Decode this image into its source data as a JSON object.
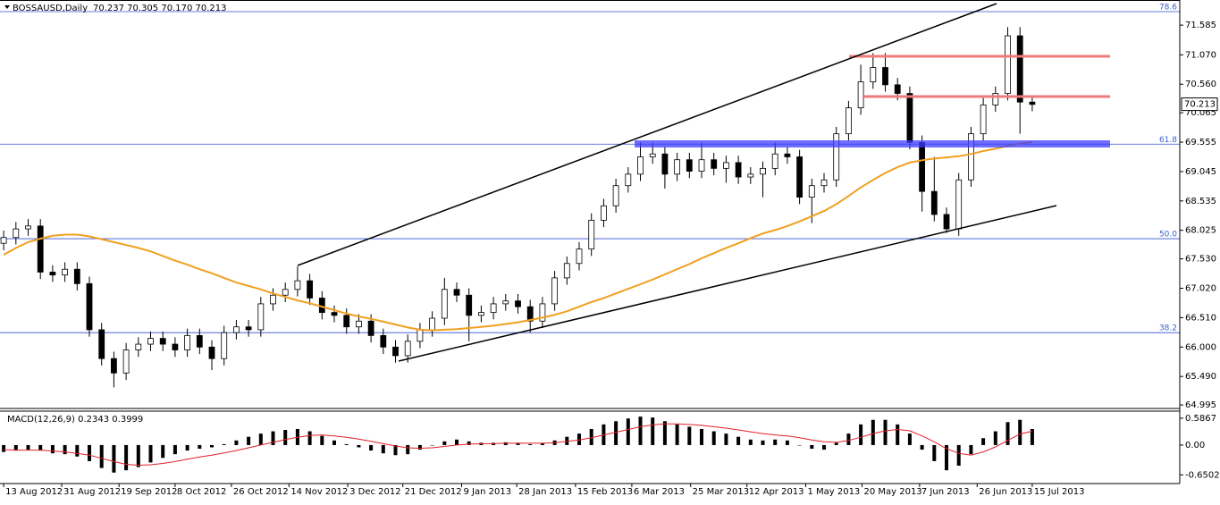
{
  "chart_data": {
    "type": "candlestick",
    "symbol": "BOSSAUSD,Daily",
    "ohlc_text": "70.237 70.305 70.170 70.213",
    "open": [
      67.8,
      67.9,
      68.05,
      68.1,
      67.3,
      67.25,
      67.35,
      67.1,
      66.3,
      65.8,
      65.55,
      65.95,
      66.05,
      66.15,
      66.05,
      65.95,
      66.2,
      66.0,
      65.8,
      66.25,
      66.35,
      66.3,
      66.75,
      66.9,
      67.0,
      67.15,
      66.85,
      66.6,
      66.55,
      66.35,
      66.45,
      66.2,
      66.0,
      65.85,
      66.1,
      66.3,
      66.5,
      67.0,
      66.9,
      66.55,
      66.6,
      66.75,
      66.8,
      66.7,
      66.45,
      66.75,
      67.2,
      67.45,
      67.7,
      68.2,
      68.45,
      68.8,
      69.0,
      69.3,
      69.35,
      69.0,
      69.25,
      69.05,
      69.25,
      69.1,
      69.2,
      68.95,
      69.0,
      69.1,
      69.35,
      69.3,
      68.6,
      68.8,
      68.9,
      69.7,
      70.15,
      70.6,
      70.85,
      70.55,
      70.4,
      69.55,
      68.7,
      68.3,
      68.05,
      68.9,
      69.7,
      70.2,
      70.4,
      71.4,
      70.25
    ],
    "high": [
      68.02,
      68.17,
      68.22,
      68.22,
      67.42,
      67.47,
      67.47,
      67.22,
      66.42,
      65.92,
      66.07,
      66.17,
      66.27,
      66.27,
      66.17,
      66.32,
      66.32,
      66.12,
      66.37,
      66.47,
      66.47,
      66.87,
      67.02,
      67.12,
      67.4,
      67.27,
      66.97,
      66.72,
      66.67,
      66.57,
      66.57,
      66.32,
      66.12,
      66.22,
      66.42,
      66.62,
      67.2,
      67.12,
      67.02,
      66.72,
      66.87,
      66.92,
      66.92,
      66.82,
      66.87,
      67.32,
      67.57,
      67.82,
      68.32,
      68.57,
      68.92,
      69.12,
      69.55,
      69.55,
      69.47,
      69.37,
      69.37,
      69.55,
      69.37,
      69.32,
      69.32,
      69.12,
      69.22,
      69.55,
      69.47,
      69.42,
      68.92,
      69.02,
      69.82,
      70.27,
      70.9,
      71.1,
      71.1,
      70.67,
      70.52,
      69.67,
      69.3,
      68.42,
      69.02,
      69.82,
      70.32,
      70.52,
      71.55,
      71.55,
      70.37
    ],
    "low": [
      67.68,
      67.78,
      67.93,
      67.18,
      67.13,
      67.13,
      66.98,
      66.18,
      65.68,
      65.3,
      65.43,
      65.83,
      65.93,
      65.93,
      65.83,
      65.83,
      65.88,
      65.6,
      65.68,
      66.13,
      66.18,
      66.18,
      66.63,
      66.78,
      66.88,
      66.73,
      66.48,
      66.43,
      66.23,
      66.23,
      66.08,
      65.88,
      65.73,
      65.73,
      65.98,
      66.18,
      66.38,
      66.78,
      66.1,
      66.43,
      66.48,
      66.63,
      66.58,
      66.25,
      66.33,
      66.63,
      67.08,
      67.33,
      67.58,
      68.08,
      68.33,
      68.68,
      68.88,
      69.18,
      68.75,
      68.88,
      68.93,
      68.93,
      68.98,
      68.85,
      68.83,
      68.83,
      68.6,
      68.98,
      69.18,
      68.48,
      68.15,
      68.68,
      68.78,
      69.58,
      70.03,
      70.48,
      70.43,
      70.28,
      69.43,
      68.35,
      68.18,
      67.98,
      67.93,
      68.78,
      69.58,
      70.08,
      70.28,
      69.7,
      70.09
    ],
    "close": [
      67.9,
      68.05,
      68.1,
      67.3,
      67.25,
      67.35,
      67.1,
      66.3,
      65.8,
      65.55,
      65.95,
      66.05,
      66.15,
      66.05,
      65.95,
      66.2,
      66.0,
      65.8,
      66.25,
      66.35,
      66.3,
      66.75,
      66.9,
      67.0,
      67.15,
      66.85,
      66.6,
      66.55,
      66.35,
      66.45,
      66.2,
      66.0,
      65.85,
      66.1,
      66.3,
      66.5,
      67.0,
      66.9,
      66.55,
      66.6,
      66.75,
      66.8,
      66.7,
      66.45,
      66.75,
      67.2,
      67.45,
      67.7,
      68.2,
      68.45,
      68.8,
      69.0,
      69.3,
      69.35,
      69.0,
      69.25,
      69.05,
      69.25,
      69.1,
      69.2,
      68.95,
      69.0,
      69.1,
      69.35,
      69.3,
      68.6,
      68.8,
      68.9,
      69.7,
      70.15,
      70.6,
      70.85,
      70.55,
      70.4,
      69.55,
      68.7,
      68.3,
      68.05,
      68.9,
      69.7,
      70.2,
      70.4,
      71.4,
      70.25,
      70.21
    ],
    "moving_average": {
      "color": "#f0a020",
      "values": [
        67.6,
        67.72,
        67.82,
        67.88,
        67.93,
        67.95,
        67.95,
        67.92,
        67.87,
        67.82,
        67.77,
        67.72,
        67.66,
        67.58,
        67.5,
        67.43,
        67.35,
        67.28,
        67.2,
        67.12,
        67.06,
        67.0,
        66.93,
        66.87,
        66.81,
        66.76,
        66.7,
        66.64,
        66.58,
        66.53,
        66.49,
        66.44,
        66.39,
        66.34,
        66.3,
        66.29,
        66.3,
        66.31,
        66.33,
        66.35,
        66.37,
        66.4,
        66.43,
        66.47,
        66.51,
        66.56,
        66.62,
        66.7,
        66.78,
        66.85,
        66.93,
        67.01,
        67.09,
        67.17,
        67.26,
        67.35,
        67.44,
        67.54,
        67.63,
        67.72,
        67.8,
        67.89,
        67.97,
        68.03,
        68.1,
        68.18,
        68.27,
        68.36,
        68.48,
        68.62,
        68.77,
        68.9,
        69.02,
        69.12,
        69.2,
        69.24,
        69.27,
        69.29,
        69.31,
        69.35,
        69.4,
        69.44,
        69.49,
        69.53,
        69.56
      ]
    },
    "ylim": [
      64.95,
      71.99
    ],
    "yticks": [
      71.585,
      {
        "value": 71.07,
        "label": "71.070"
      },
      {
        "value": 70.56,
        "label": "70.560"
      },
      70.065,
      69.555,
      69.045,
      68.535,
      68.025,
      {
        "value": 67.53,
        "label": "67.530"
      },
      {
        "value": 67.02,
        "label": "67.020"
      },
      {
        "value": 66.51,
        "label": "66.510"
      },
      {
        "value": 66,
        "label": "66.000"
      },
      {
        "value": 65.49,
        "label": "65.490"
      },
      64.995
    ],
    "xlim": [
      -0.3,
      96.05
    ],
    "xticks": [
      {
        "value": 0,
        "label": "13 Aug 2012"
      },
      {
        "value": 4.74,
        "label": "31 Aug 2012"
      },
      {
        "value": 9.42,
        "label": "19 Sep 2012"
      },
      {
        "value": 14.0,
        "label": "8 Oct 2012"
      },
      {
        "value": 18.6,
        "label": "26 Oct 2012"
      },
      {
        "value": 23.3,
        "label": "14 Nov 2012"
      },
      {
        "value": 28.1,
        "label": "3 Dec 2012"
      },
      {
        "value": 32.6,
        "label": "21 Dec 2012"
      },
      {
        "value": 37.4,
        "label": "9 Jan 2013"
      },
      {
        "value": 41.9,
        "label": "28 Jan 2013"
      },
      {
        "value": 46.7,
        "label": "15 Feb 2013"
      },
      {
        "value": 51.3,
        "label": "6 Mar 2013"
      },
      {
        "value": 56.1,
        "label": "25 Mar 2013"
      },
      {
        "value": 60.7,
        "label": "12 Apr 2013"
      },
      {
        "value": 65.5,
        "label": "1 May 2013"
      },
      {
        "value": 70.1,
        "label": "20 May 2013"
      },
      {
        "value": 74.8,
        "label": "7 Jun 2013"
      },
      {
        "value": 79.5,
        "label": "26 Jun 2013"
      },
      {
        "value": 84.0,
        "label": "15 Jul 2013"
      }
    ],
    "last_price": 70.213,
    "fib_levels": [
      {
        "label": "78.6",
        "price": 71.82
      },
      {
        "label": "61.8",
        "price": 69.52
      },
      {
        "label": "50.0",
        "price": 67.88
      },
      {
        "label": "38.2",
        "price": 66.25
      }
    ],
    "fib_color": "#3050d0",
    "macd": {
      "title": "MACD(12,26,9) 0.2343 0.3999",
      "histogram": [
        -0.15,
        -0.12,
        -0.1,
        -0.12,
        -0.18,
        -0.2,
        -0.25,
        -0.35,
        -0.5,
        -0.6,
        -0.55,
        -0.48,
        -0.38,
        -0.28,
        -0.2,
        -0.12,
        -0.08,
        -0.05,
        0.02,
        0.1,
        0.18,
        0.25,
        0.3,
        0.33,
        0.35,
        0.3,
        0.2,
        0.1,
        0.02,
        -0.05,
        -0.12,
        -0.18,
        -0.22,
        -0.2,
        -0.1,
        0.0,
        0.08,
        0.12,
        0.08,
        0.05,
        0.05,
        0.06,
        0.05,
        0.02,
        0.04,
        0.1,
        0.18,
        0.25,
        0.35,
        0.45,
        0.52,
        0.58,
        0.62,
        0.6,
        0.52,
        0.45,
        0.4,
        0.35,
        0.3,
        0.25,
        0.18,
        0.12,
        0.1,
        0.12,
        0.1,
        0.0,
        -0.08,
        -0.1,
        0.05,
        0.25,
        0.45,
        0.55,
        0.55,
        0.45,
        0.25,
        -0.1,
        -0.35,
        -0.55,
        -0.45,
        -0.2,
        0.15,
        0.3,
        0.5,
        0.55,
        0.35
      ],
      "signal": {
        "color": "#e0202a",
        "values": [
          -0.1,
          -0.11,
          -0.11,
          -0.11,
          -0.13,
          -0.15,
          -0.18,
          -0.22,
          -0.29,
          -0.36,
          -0.42,
          -0.44,
          -0.43,
          -0.4,
          -0.36,
          -0.31,
          -0.26,
          -0.22,
          -0.17,
          -0.12,
          -0.06,
          0.0,
          0.06,
          0.12,
          0.17,
          0.21,
          0.22,
          0.2,
          0.17,
          0.13,
          0.08,
          0.03,
          -0.02,
          -0.06,
          -0.07,
          -0.06,
          -0.03,
          0.0,
          0.02,
          0.03,
          0.03,
          0.04,
          0.04,
          0.04,
          0.04,
          0.05,
          0.08,
          0.11,
          0.16,
          0.22,
          0.28,
          0.34,
          0.4,
          0.44,
          0.46,
          0.46,
          0.45,
          0.43,
          0.4,
          0.37,
          0.33,
          0.29,
          0.25,
          0.22,
          0.2,
          0.16,
          0.11,
          0.07,
          0.06,
          0.1,
          0.17,
          0.25,
          0.31,
          0.34,
          0.31,
          0.2,
          0.07,
          -0.08,
          -0.18,
          -0.22,
          -0.15,
          -0.04,
          0.1,
          0.24,
          0.3
        ]
      },
      "ylim": [
        -0.82,
        0.72
      ],
      "yticks": [
        0.5867,
        {
          "value": 0,
          "label": "0.00"
        },
        -0.6502
      ]
    }
  }
}
